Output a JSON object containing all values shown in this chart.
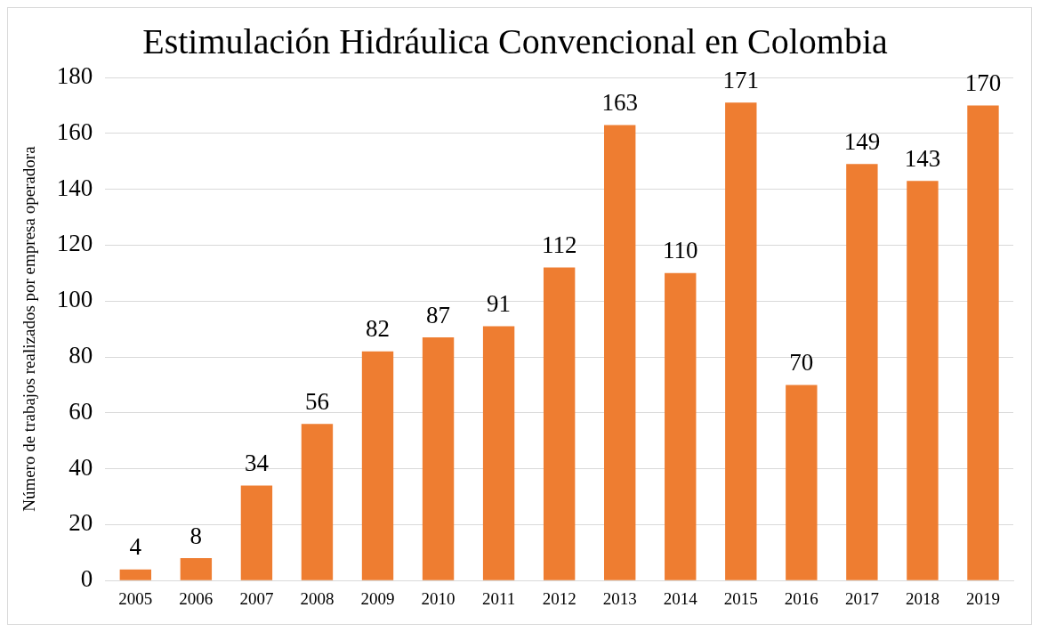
{
  "chart_data": {
    "type": "bar",
    "title": "Estimulación Hidráulica Convencional en Colombia",
    "ylabel": "Número de trabajos realizados por empresa operadora",
    "categories": [
      "2005",
      "2006",
      "2007",
      "2008",
      "2009",
      "2010",
      "2011",
      "2012",
      "2013",
      "2014",
      "2015",
      "2016",
      "2017",
      "2018",
      "2019"
    ],
    "values": [
      4,
      8,
      34,
      56,
      82,
      87,
      91,
      112,
      163,
      110,
      171,
      70,
      149,
      143,
      170
    ],
    "color": "#ee7d31",
    "ylim": [
      0,
      180
    ],
    "yticks": [
      0,
      20,
      40,
      60,
      80,
      100,
      120,
      140,
      160,
      180
    ],
    "grid": "y",
    "legend": false,
    "data_labels": true
  }
}
